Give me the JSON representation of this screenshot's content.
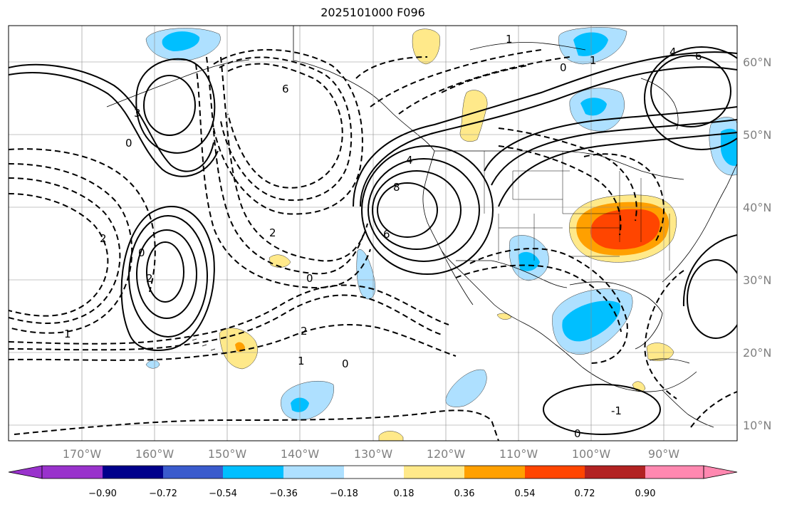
{
  "title": "2025101000 F096",
  "map": {
    "lon_ticks": [
      "170°W",
      "160°W",
      "150°W",
      "140°W",
      "130°W",
      "120°W",
      "110°W",
      "100°W",
      "90°W"
    ],
    "lat_ticks": [
      "60°N",
      "50°N",
      "40°N",
      "30°N",
      "20°N",
      "10°N"
    ],
    "contour_labels": [
      "8",
      "6",
      "4",
      "4",
      "6",
      "6",
      "3",
      "2",
      "2",
      "2",
      "2",
      "1",
      "1",
      "1",
      "0",
      "0",
      "0",
      "0",
      "0",
      "0",
      "-1",
      "1"
    ],
    "colors": {
      "land_lines": "#000000",
      "grid": "#8c8c8c",
      "warm_light": "#ffe98a",
      "warm_mid": "#ffa000",
      "warm_strong": "#ff4500",
      "cool_light": "#aee0ff",
      "cool_mid": "#00bfff"
    }
  },
  "colorbar": {
    "tick_labels": [
      "−0.90",
      "−0.72",
      "−0.54",
      "−0.36",
      "−0.18",
      "0.18",
      "0.36",
      "0.54",
      "0.72",
      "0.90"
    ],
    "colors": [
      "#9932cc",
      "#00008b",
      "#3a5bcd",
      "#00bfff",
      "#aee0ff",
      "#ffffff",
      "#ffe98a",
      "#ffa000",
      "#ff4500",
      "#b22222",
      "#ff88b0"
    ]
  }
}
